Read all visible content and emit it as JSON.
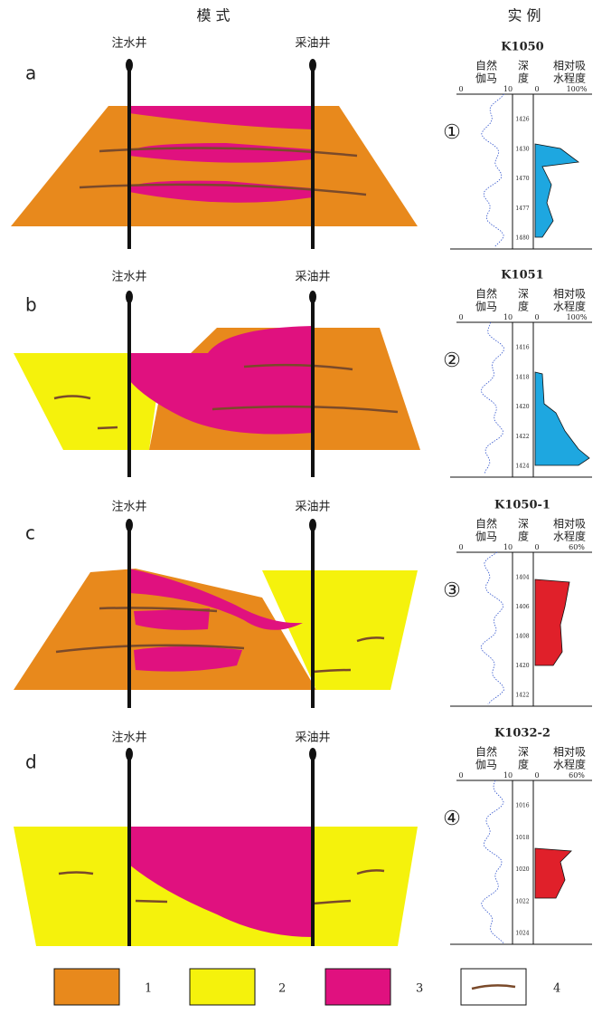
{
  "header": {
    "model": "模 式",
    "example": "实 例"
  },
  "panels": [
    {
      "label": "a",
      "injector": "注水井",
      "producer": "采油井",
      "well": "K1050",
      "gamma_label": [
        "自然",
        "伽马"
      ],
      "depth_label": [
        "深",
        "度"
      ],
      "absorb_label": [
        "相对吸",
        "水程度"
      ],
      "scale": [
        "0",
        "10",
        "0",
        "100%"
      ],
      "case": "①",
      "depths": [
        "1426",
        "1430",
        "1470",
        "1477",
        "1480"
      ]
    },
    {
      "label": "b",
      "injector": "注水井",
      "producer": "采油井",
      "well": "K1051",
      "gamma_label": [
        "自然",
        "伽马"
      ],
      "depth_label": [
        "深",
        "度"
      ],
      "absorb_label": [
        "相对吸",
        "水程度"
      ],
      "scale": [
        "0",
        "10",
        "0",
        "100%"
      ],
      "case": "②",
      "depths": [
        "1416",
        "1418",
        "1420",
        "1422",
        "1424"
      ]
    },
    {
      "label": "c",
      "injector": "注水井",
      "producer": "采油井",
      "well": "K1050-1",
      "gamma_label": [
        "自然",
        "伽马"
      ],
      "depth_label": [
        "深",
        "度"
      ],
      "absorb_label": [
        "相对吸",
        "水程度"
      ],
      "scale": [
        "0",
        "10",
        "0",
        "60%"
      ],
      "case": "③",
      "depths": [
        "1404",
        "1406",
        "1408",
        "1420",
        "1422"
      ]
    },
    {
      "label": "d",
      "injector": "注水井",
      "producer": "采油井",
      "well": "K1032-2",
      "gamma_label": [
        "自然",
        "伽马"
      ],
      "depth_label": [
        "深",
        "度"
      ],
      "absorb_label": [
        "相对吸",
        "水程度"
      ],
      "scale": [
        "0",
        "10",
        "0",
        "60%"
      ],
      "case": "④",
      "depths": [
        "1016",
        "1018",
        "1020",
        "1022",
        "1024"
      ]
    }
  ],
  "legend": [
    "1",
    "2",
    "3",
    "4"
  ]
}
